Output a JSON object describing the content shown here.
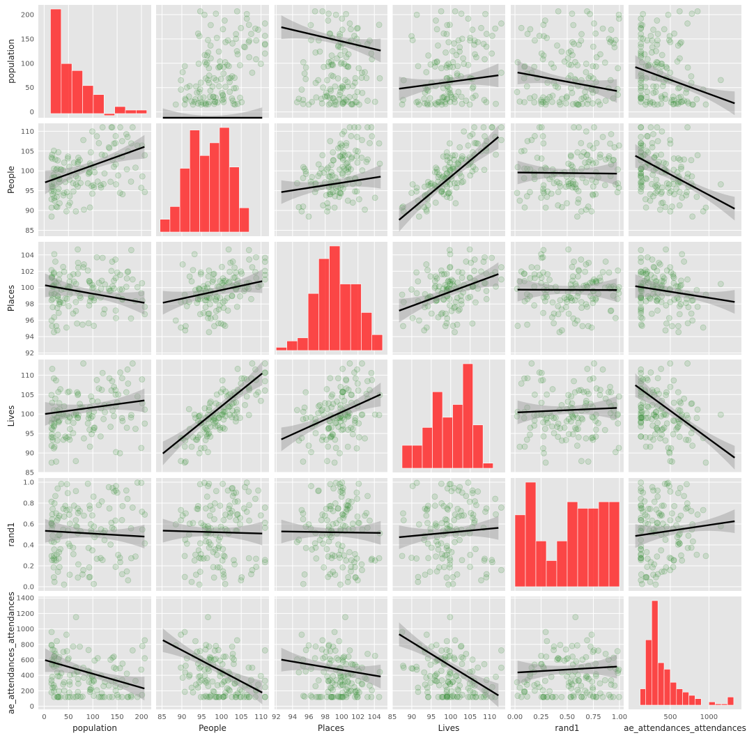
{
  "chart_data": {
    "type": "scatter",
    "kind": "pairplot",
    "variables": [
      {
        "name": "population",
        "ticks": [
          0,
          50,
          100,
          150,
          200
        ],
        "range": [
          -12,
          220
        ]
      },
      {
        "name": "People",
        "ticks": [
          85,
          90,
          95,
          100,
          105,
          110
        ],
        "range": [
          83.5,
          112
        ]
      },
      {
        "name": "Places",
        "ticks": [
          92,
          94,
          96,
          98,
          100,
          102,
          104
        ],
        "range": [
          91.8,
          105.6
        ]
      },
      {
        "name": "Lives",
        "ticks": [
          85,
          90,
          95,
          100,
          105,
          110
        ],
        "range": [
          85,
          114
        ]
      },
      {
        "name": "rand1",
        "ticks": [
          0.0,
          0.2,
          0.4,
          0.6,
          0.8,
          1.0
        ],
        "tick_labels_y": [
          "0.0",
          "0.2",
          "0.4",
          "0.6",
          "0.8",
          "1.0"
        ],
        "tick_labels_x": [
          "0.00",
          "0.25",
          "0.50",
          "0.75",
          "1.00"
        ],
        "x_ticks": [
          0.0,
          0.25,
          0.5,
          0.75,
          1.0
        ],
        "range": [
          -0.04,
          1.04
        ]
      },
      {
        "name": "ae_attendances_attendances",
        "ticks": [
          0,
          200,
          400,
          600,
          800,
          1000,
          1200,
          1400
        ],
        "x_ticks": [
          500,
          1000
        ],
        "range": [
          -40,
          1420
        ]
      }
    ],
    "regressions": {
      "population": {
        "People": [
          0.082,
          -24
        ],
        "Places": [
          -3.95,
          540
        ],
        "Lives": [
          1.08,
          -46
        ],
        "rand1": [
          -40,
          82
        ],
        "ae_attendances_attendances": [
          -0.058,
          95
        ]
      },
      "People": {
        "population": [
          0.044,
          97.0
        ],
        "Places": [
          0.32,
          65.0
        ],
        "Lives": [
          0.82,
          16.5
        ],
        "rand1": [
          -0.3,
          99.6
        ],
        "ae_attendances_attendances": [
          -0.0104,
          104.3
        ]
      },
      "Places": {
        "population": [
          -0.0105,
          100.3
        ],
        "People": [
          0.105,
          89.2
        ],
        "Lives": [
          0.175,
          82.0
        ],
        "rand1": [
          -0.05,
          99.75
        ],
        "ae_attendances_attendances": [
          -0.0015,
          100.25
        ]
      },
      "Lives": {
        "population": [
          0.017,
          100.0
        ],
        "People": [
          0.82,
          20.0
        ],
        "Places": [
          0.95,
          5.5
        ],
        "rand1": [
          1.2,
          100.4
        ],
        "ae_attendances_attendances": [
          -0.0145,
          108.1
        ]
      },
      "rand1": {
        "population": [
          -0.00027,
          0.535
        ],
        "People": [
          -0.0011,
          0.63
        ],
        "Places": [
          -0.0012,
          0.64
        ],
        "Lives": [
          0.0035,
          0.17
        ],
        "ae_attendances_attendances": [
          0.00011,
          0.48
        ]
      },
      "ae_attendances_attendances": {
        "population": [
          -1.8,
          600
        ],
        "People": [
          -27,
          3155
        ],
        "Places": [
          -18,
          2270
        ],
        "Lives": [
          -31,
          3620
        ],
        "rand1": [
          80,
          435
        ]
      }
    },
    "histograms": {
      "population": {
        "bins": [
          [
            13,
            35,
            209
          ],
          [
            35,
            57,
            100
          ],
          [
            57,
            79,
            86
          ],
          [
            79,
            101,
            56
          ],
          [
            101,
            123,
            38
          ],
          [
            123,
            145,
            -4
          ],
          [
            145,
            167,
            14
          ],
          [
            167,
            189,
            7
          ],
          [
            189,
            211,
            7
          ]
        ]
      },
      "People": {
        "bins": [
          [
            84.5,
            87,
            1
          ],
          [
            87,
            89.5,
            2
          ],
          [
            89.5,
            92,
            5
          ],
          [
            92,
            94.5,
            8
          ],
          [
            94.5,
            97,
            6
          ],
          [
            97,
            99.5,
            7
          ],
          [
            99.5,
            102,
            8.2
          ],
          [
            102,
            104.5,
            5.1
          ],
          [
            104.5,
            107,
            1.9
          ]
        ],
        "draw_range": [
          84.5,
          111
        ],
        "peak": 8.2
      },
      "Places": {
        "bins": [
          [
            92.0,
            93.3,
            1
          ],
          [
            93.3,
            94.6,
            3
          ],
          [
            94.6,
            95.9,
            4
          ],
          [
            95.9,
            97.2,
            18
          ],
          [
            97.2,
            98.5,
            29
          ],
          [
            98.5,
            99.8,
            33
          ],
          [
            99.8,
            101.1,
            21
          ],
          [
            101.1,
            102.4,
            21
          ],
          [
            102.4,
            103.7,
            12
          ],
          [
            103.7,
            105.0,
            5
          ]
        ],
        "peak": 33
      },
      "Lives": {
        "bins": [
          [
            87.5,
            90.1,
            9
          ],
          [
            90.1,
            92.7,
            9
          ],
          [
            92.7,
            95.3,
            16
          ],
          [
            95.3,
            97.9,
            30
          ],
          [
            97.9,
            100.5,
            20
          ],
          [
            100.5,
            103.1,
            25
          ],
          [
            103.1,
            105.7,
            41
          ],
          [
            105.7,
            108.3,
            17
          ],
          [
            108.3,
            110.9,
            2
          ]
        ],
        "peak": 41
      },
      "rand1": {
        "bins": [
          [
            0.0,
            0.1,
            11
          ],
          [
            0.1,
            0.2,
            16
          ],
          [
            0.2,
            0.3,
            7
          ],
          [
            0.3,
            0.4,
            4
          ],
          [
            0.4,
            0.5,
            7
          ],
          [
            0.5,
            0.6,
            13
          ],
          [
            0.6,
            0.7,
            12
          ],
          [
            0.7,
            0.8,
            12
          ],
          [
            0.8,
            0.9,
            13
          ],
          [
            0.9,
            1.0,
            13
          ]
        ],
        "peak": 16
      },
      "ae_attendances_attendances": {
        "bins": [
          [
            110,
            180,
            5
          ],
          [
            180,
            260,
            20
          ],
          [
            260,
            340,
            32
          ],
          [
            340,
            420,
            13
          ],
          [
            420,
            500,
            11
          ],
          [
            500,
            580,
            7
          ],
          [
            580,
            660,
            5
          ],
          [
            660,
            740,
            4
          ],
          [
            740,
            820,
            3
          ],
          [
            820,
            900,
            2
          ],
          [
            1000,
            1080,
            1
          ],
          [
            1080,
            1160,
            0.4
          ],
          [
            1160,
            1240,
            0.4
          ],
          [
            1240,
            1320,
            2.5
          ]
        ],
        "peak": 32
      }
    },
    "point_count": 130,
    "grid": true,
    "style": "ggplot",
    "colors": {
      "scatter": "#2e8b2e",
      "scatter_alpha": 0.15,
      "regression": "#000000",
      "ci_band": "#999999",
      "histogram": "#ff2a2a",
      "panel_bg": "#e5e5e5",
      "grid": "#ffffff"
    }
  }
}
